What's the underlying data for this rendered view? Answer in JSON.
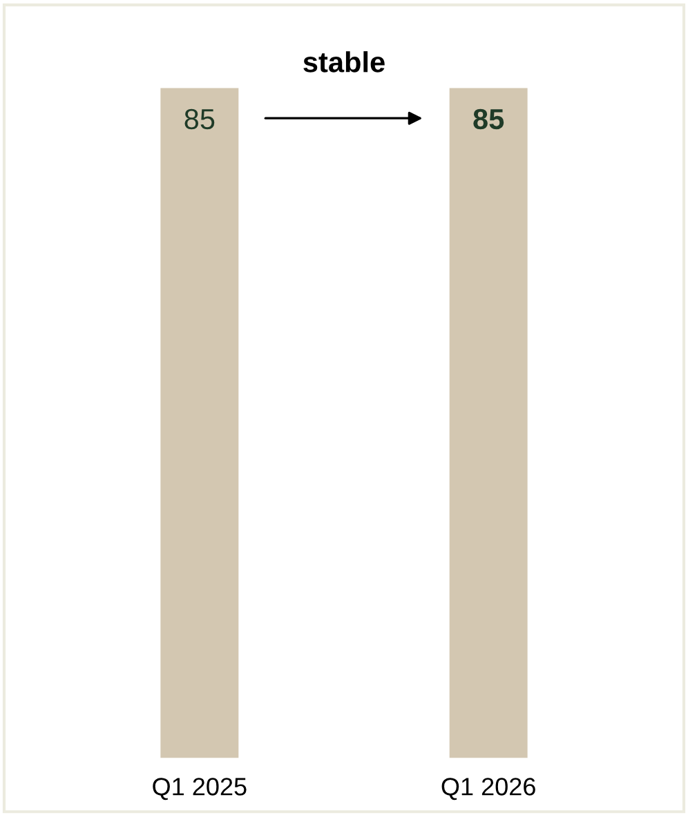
{
  "chart_data": {
    "type": "bar",
    "categories": [
      "Q1 2025",
      "Q1 2026"
    ],
    "values": [
      85,
      85
    ],
    "colors": [
      "#d3c7b1",
      "#d3c7b1"
    ],
    "data_labels": true,
    "annotations": [
      "stable"
    ],
    "grid": false,
    "legend": false
  }
}
